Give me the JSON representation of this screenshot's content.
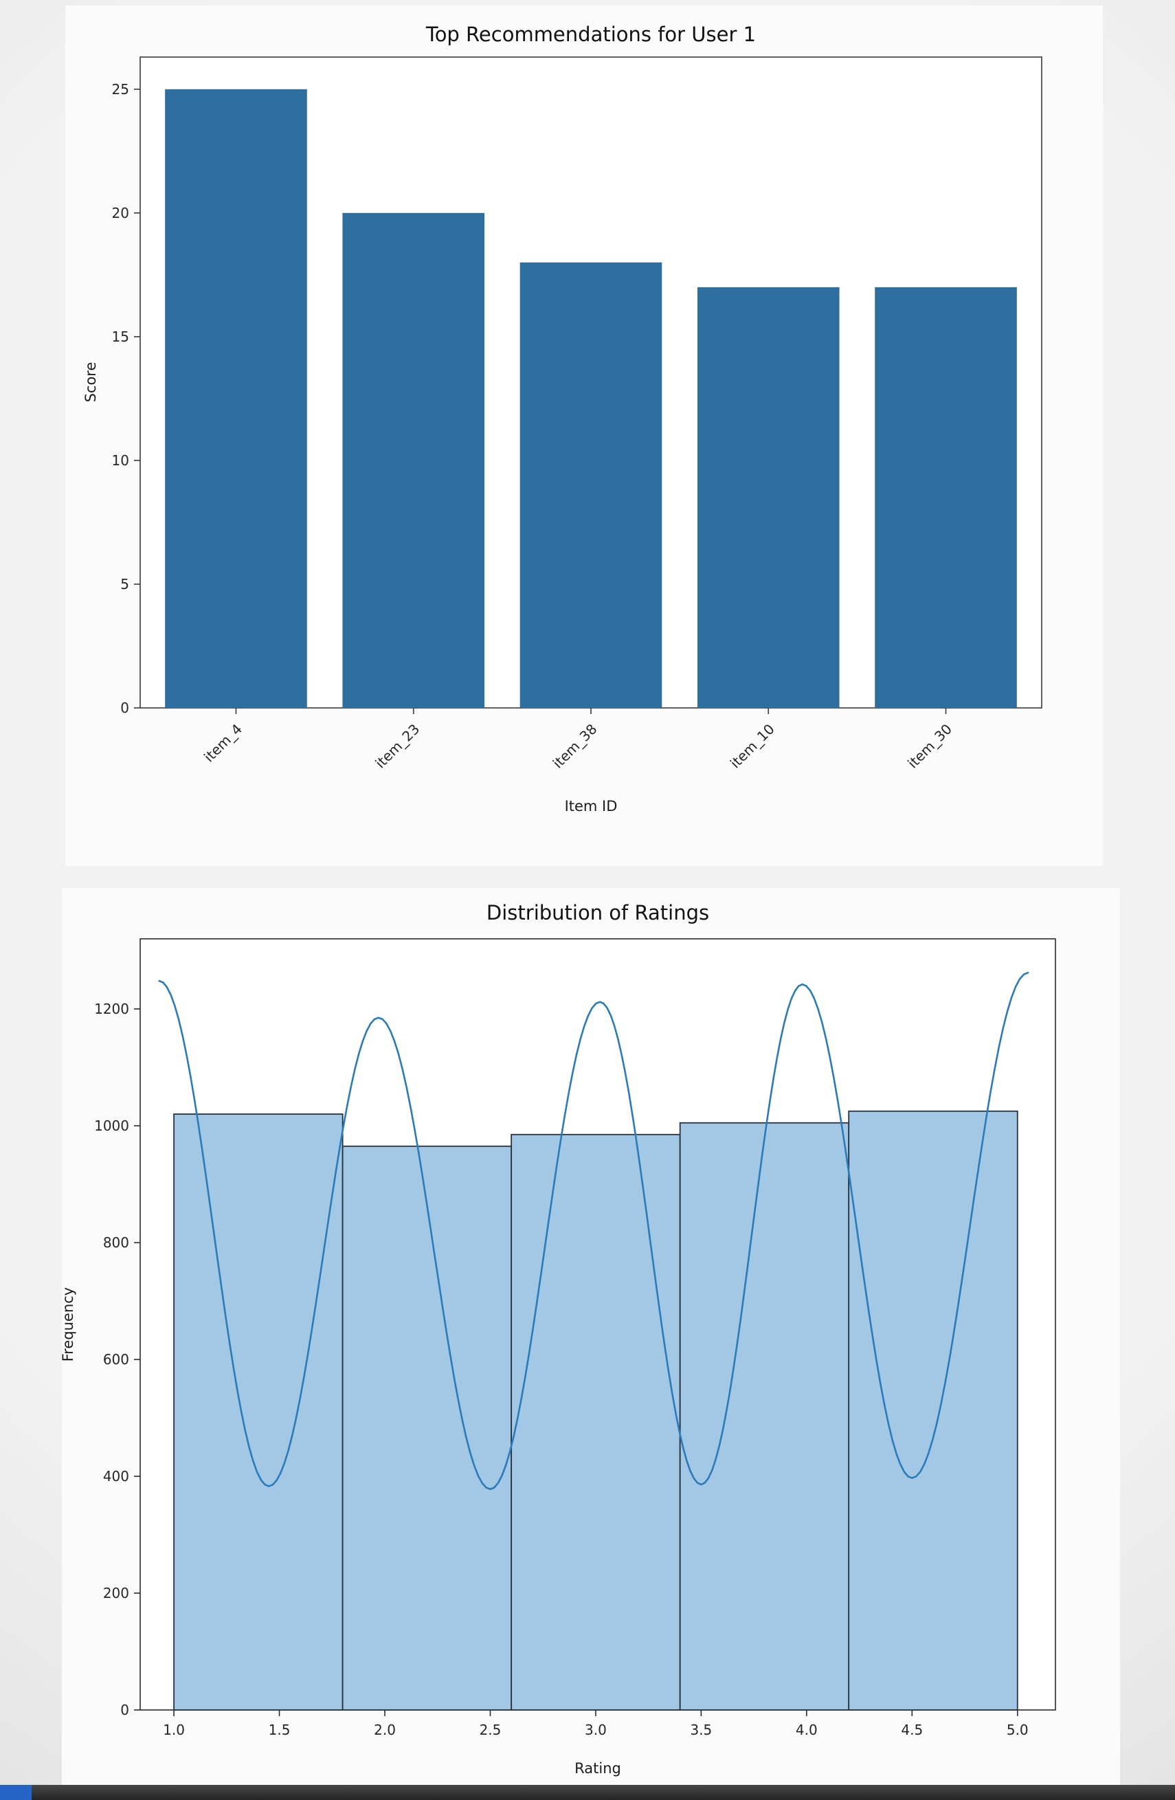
{
  "window": {
    "background": "#ececec",
    "taskbar": {
      "color": "#2f2f2f",
      "accent_color": "#2563c4"
    }
  },
  "chart_data": [
    {
      "type": "bar",
      "title": "Top Recommendations for User 1",
      "xlabel": "Item ID",
      "ylabel": "Score",
      "categories": [
        "item_4",
        "item_23",
        "item_38",
        "item_10",
        "item_30"
      ],
      "values": [
        25,
        20,
        18,
        17,
        17
      ],
      "ylim": [
        0,
        26.3
      ],
      "yticks": [
        0,
        5,
        10,
        15,
        20,
        25
      ],
      "bar_color": "#2e6f9f",
      "grid": false,
      "legend": "none",
      "xtick_rotation_deg": 45
    },
    {
      "type": "histogram",
      "title": "Distribution of Ratings",
      "xlabel": "Rating",
      "ylabel": "Frequency",
      "bins": {
        "edges": [
          1.0,
          1.8,
          2.6,
          3.4,
          4.2,
          5.0
        ],
        "counts": [
          1020,
          965,
          985,
          1005,
          1025
        ]
      },
      "xlim": [
        0.84,
        5.18
      ],
      "ylim": [
        0,
        1320
      ],
      "xticks": [
        1.0,
        1.5,
        2.0,
        2.5,
        3.0,
        3.5,
        4.0,
        4.5,
        5.0
      ],
      "xtick_labels": [
        "1.0",
        "1.5",
        "2.0",
        "2.5",
        "3.0",
        "3.5",
        "4.0",
        "4.5",
        "5.0"
      ],
      "yticks": [
        0,
        200,
        400,
        600,
        800,
        1000,
        1200
      ],
      "bar_fill": "#a2c8e6",
      "bar_edge": "#27323e",
      "kde_color": "#2b7bb9",
      "kde_curve": [
        {
          "x": 0.93,
          "y": 1248
        },
        {
          "x": 1.45,
          "y": 383
        },
        {
          "x": 1.97,
          "y": 1185
        },
        {
          "x": 2.5,
          "y": 378
        },
        {
          "x": 3.02,
          "y": 1212
        },
        {
          "x": 3.5,
          "y": 386
        },
        {
          "x": 3.98,
          "y": 1242
        },
        {
          "x": 4.5,
          "y": 397
        },
        {
          "x": 5.05,
          "y": 1262
        }
      ],
      "grid": false,
      "legend": "none"
    }
  ]
}
